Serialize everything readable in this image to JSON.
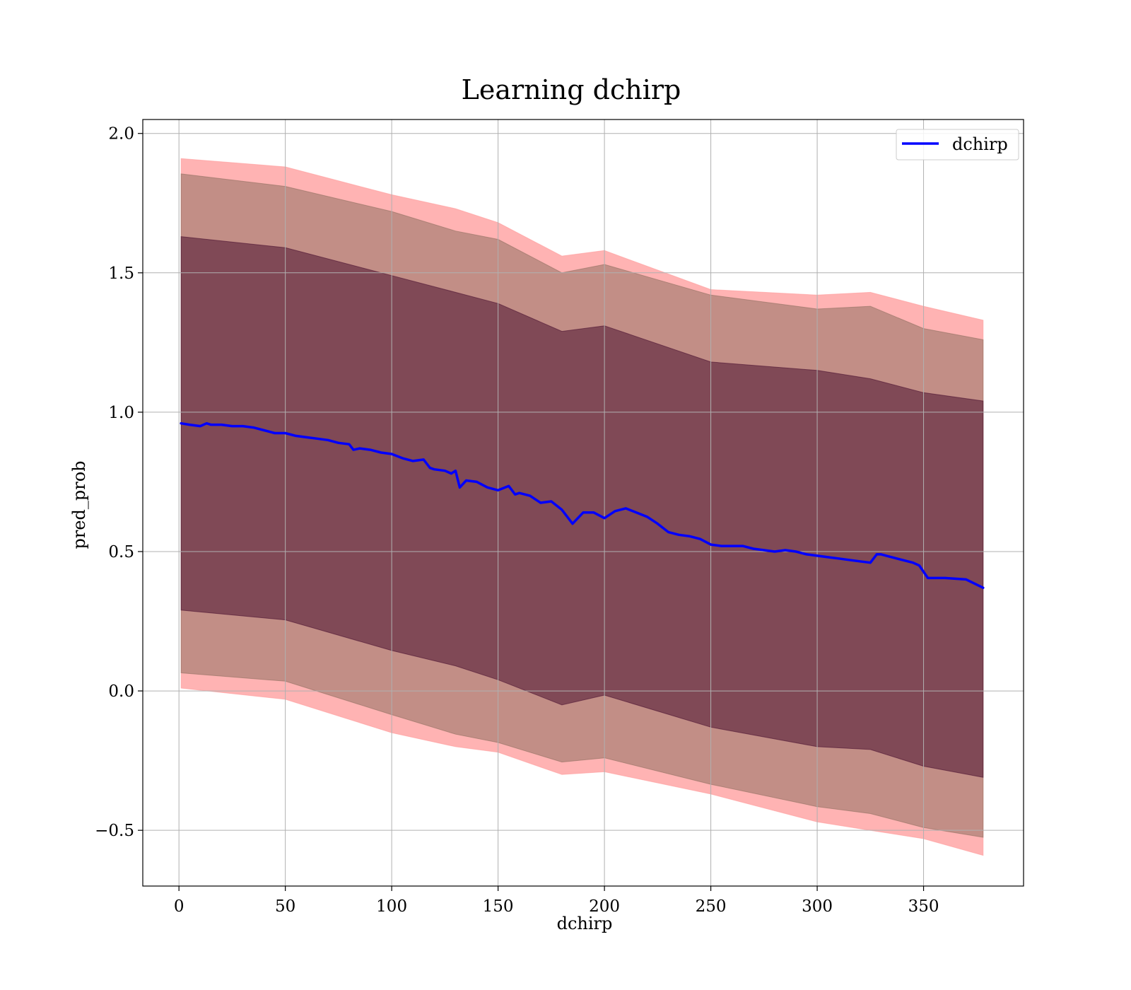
{
  "chart_data": {
    "type": "line",
    "title": "Learning dchirp",
    "xlabel": "dchirp",
    "ylabel": "pred_prob",
    "xlim": [
      -17,
      397
    ],
    "ylim": [
      -0.7,
      2.05
    ],
    "xticks": [
      0,
      50,
      100,
      150,
      200,
      250,
      300,
      350
    ],
    "yticks": [
      -0.5,
      0.0,
      0.5,
      1.0,
      1.5,
      2.0
    ],
    "xtick_labels": [
      "0",
      "50",
      "100",
      "150",
      "200",
      "250",
      "300",
      "350"
    ],
    "ytick_labels": [
      "−0.5",
      "0.0",
      "0.5",
      "1.0",
      "1.5",
      "2.0"
    ],
    "grid": true,
    "legend_position": "top-right",
    "colors": {
      "line": "#0000ff",
      "band_outer": "#ff9a9a",
      "band_middle": "#8f7060",
      "band_inner": "#4a1030",
      "grid": "#b0b0b0"
    },
    "series": [
      {
        "name": "dchirp",
        "x": [
          1,
          5,
          10,
          13,
          15,
          20,
          25,
          30,
          35,
          40,
          45,
          50,
          55,
          60,
          65,
          70,
          75,
          80,
          82,
          85,
          90,
          95,
          100,
          105,
          110,
          115,
          118,
          120,
          125,
          128,
          130,
          132,
          135,
          140,
          145,
          150,
          155,
          158,
          160,
          165,
          168,
          170,
          175,
          180,
          185,
          190,
          195,
          200,
          205,
          210,
          215,
          220,
          225,
          230,
          235,
          240,
          245,
          250,
          255,
          260,
          265,
          270,
          275,
          280,
          285,
          290,
          295,
          300,
          305,
          310,
          315,
          320,
          325,
          328,
          330,
          335,
          340,
          345,
          348,
          352,
          360,
          370,
          378
        ],
        "values": [
          0.96,
          0.955,
          0.95,
          0.96,
          0.955,
          0.955,
          0.95,
          0.95,
          0.945,
          0.935,
          0.925,
          0.925,
          0.915,
          0.91,
          0.905,
          0.9,
          0.89,
          0.885,
          0.865,
          0.87,
          0.865,
          0.855,
          0.85,
          0.835,
          0.825,
          0.83,
          0.8,
          0.795,
          0.79,
          0.78,
          0.79,
          0.73,
          0.755,
          0.75,
          0.73,
          0.72,
          0.735,
          0.705,
          0.71,
          0.7,
          0.685,
          0.675,
          0.68,
          0.65,
          0.6,
          0.64,
          0.64,
          0.62,
          0.645,
          0.655,
          0.64,
          0.625,
          0.6,
          0.57,
          0.56,
          0.555,
          0.545,
          0.525,
          0.52,
          0.52,
          0.52,
          0.51,
          0.505,
          0.5,
          0.505,
          0.5,
          0.49,
          0.485,
          0.48,
          0.475,
          0.47,
          0.465,
          0.46,
          0.49,
          0.49,
          0.48,
          0.47,
          0.46,
          0.45,
          0.405,
          0.405,
          0.4,
          0.37
        ]
      }
    ],
    "bands": [
      {
        "name": "",
        "color_key": "band_outer",
        "opacity": 0.75,
        "x": [
          1,
          50,
          100,
          130,
          150,
          180,
          200,
          250,
          300,
          325,
          350,
          378
        ],
        "lower": [
          0.01,
          -0.03,
          -0.15,
          -0.2,
          -0.22,
          -0.3,
          -0.29,
          -0.37,
          -0.47,
          -0.5,
          -0.53,
          -0.59
        ],
        "upper": [
          1.91,
          1.88,
          1.78,
          1.73,
          1.68,
          1.56,
          1.58,
          1.44,
          1.42,
          1.43,
          1.38,
          1.33
        ]
      },
      {
        "name": "",
        "color_key": "band_middle",
        "opacity": 0.55,
        "x": [
          1,
          50,
          100,
          130,
          150,
          180,
          200,
          250,
          300,
          325,
          350,
          378
        ],
        "lower": [
          0.065,
          0.035,
          -0.085,
          -0.155,
          -0.185,
          -0.255,
          -0.24,
          -0.335,
          -0.415,
          -0.44,
          -0.49,
          -0.525
        ],
        "upper": [
          1.855,
          1.81,
          1.72,
          1.65,
          1.62,
          1.5,
          1.53,
          1.42,
          1.37,
          1.38,
          1.3,
          1.26
        ]
      },
      {
        "name": "",
        "color_key": "band_inner",
        "opacity": 0.55,
        "x": [
          1,
          50,
          100,
          130,
          150,
          180,
          200,
          250,
          300,
          325,
          350,
          378
        ],
        "lower": [
          0.29,
          0.255,
          0.145,
          0.09,
          0.04,
          -0.05,
          -0.015,
          -0.13,
          -0.2,
          -0.21,
          -0.27,
          -0.31
        ],
        "upper": [
          1.63,
          1.59,
          1.49,
          1.43,
          1.39,
          1.29,
          1.31,
          1.18,
          1.15,
          1.12,
          1.07,
          1.04
        ]
      }
    ]
  }
}
